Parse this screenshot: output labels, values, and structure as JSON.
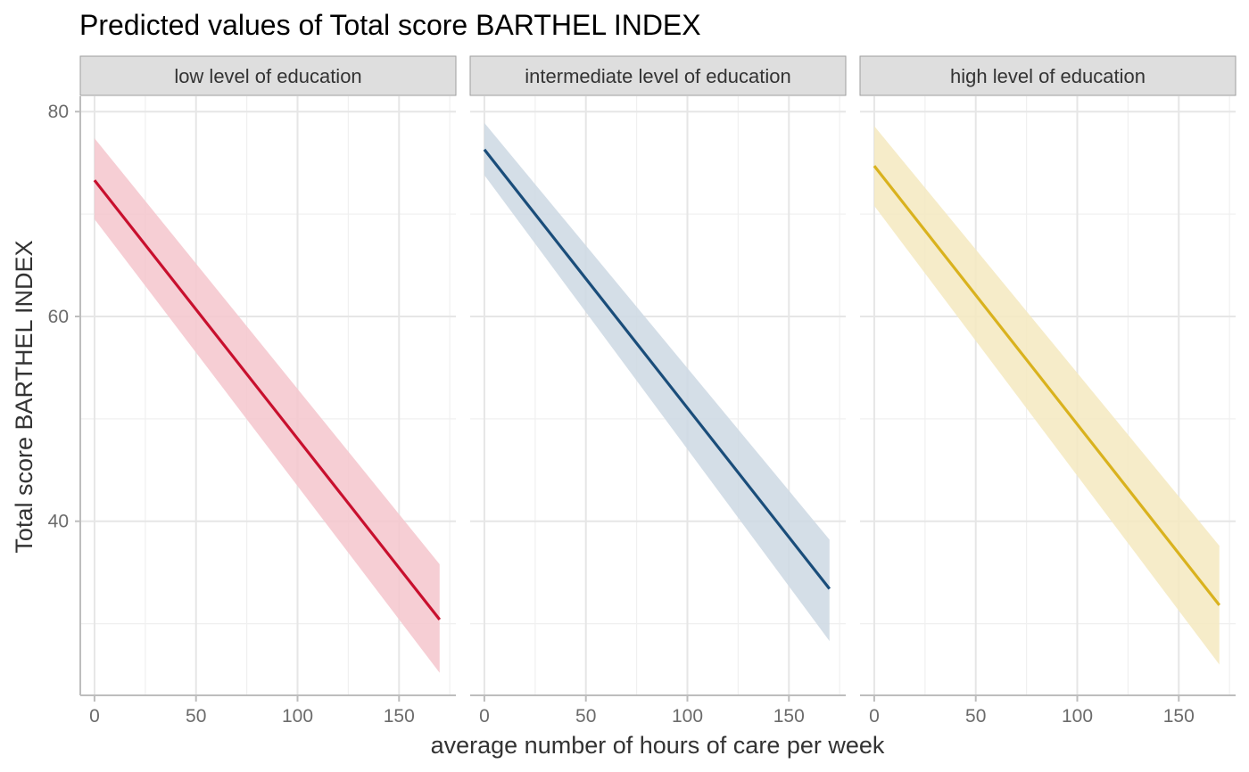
{
  "chart_data": {
    "type": "line",
    "title": "Predicted values of Total score BARTHEL INDEX",
    "xlabel": "average number of hours of care per week",
    "ylabel": "Total score BARTHEL INDEX",
    "xlim": [
      -7,
      178
    ],
    "ylim": [
      23,
      81.5
    ],
    "x_ticks": [
      0,
      50,
      100,
      150
    ],
    "y_ticks": [
      40,
      60,
      80
    ],
    "x_minor_ticks": [
      25,
      75,
      125,
      175
    ],
    "y_minor_ticks": [
      30,
      50,
      70
    ],
    "grid": true,
    "legend": "none",
    "panels": [
      {
        "label": "low level of education",
        "color": "#c8102e",
        "band_color": "#f4c5cd",
        "x": [
          0,
          170
        ],
        "y": [
          73.3,
          30.4
        ],
        "ci_low": [
          69.5,
          25.2
        ],
        "ci_high": [
          77.4,
          35.8
        ]
      },
      {
        "label": "intermediate level of education",
        "color": "#1a4d7a",
        "band_color": "#cdd8e3",
        "x": [
          0,
          170
        ],
        "y": [
          76.3,
          33.4
        ],
        "ci_low": [
          73.8,
          28.3
        ],
        "ci_high": [
          78.9,
          38.2
        ]
      },
      {
        "label": "high level of education",
        "color": "#d9b21e",
        "band_color": "#f5e9bf",
        "x": [
          0,
          170
        ],
        "y": [
          74.7,
          31.8
        ],
        "ci_low": [
          70.8,
          26.0
        ],
        "ci_high": [
          78.6,
          37.6
        ]
      }
    ]
  }
}
